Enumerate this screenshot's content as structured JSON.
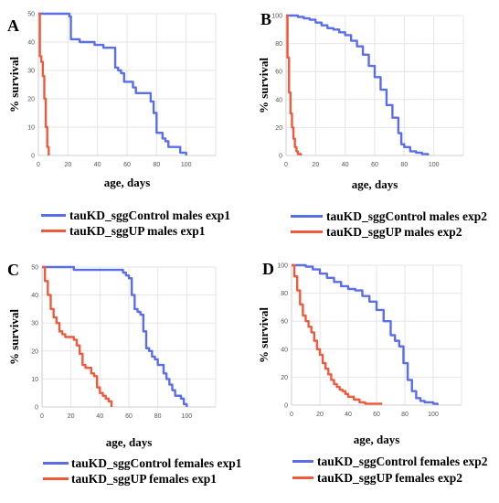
{
  "colors": {
    "control": "#5a6ee8",
    "up": "#ef5a3c"
  },
  "chart_data": [
    {
      "type": "line",
      "panel_label": "A",
      "xlabel": "age, days",
      "ylabel": "% survival",
      "xlim": [
        0,
        120
      ],
      "ylim": [
        0,
        50
      ],
      "xticks": [
        0,
        20,
        40,
        60,
        80,
        100
      ],
      "yticks": [
        0,
        10,
        20,
        30,
        40,
        50
      ],
      "grid": true,
      "legend_placement": "bottom",
      "series": [
        {
          "name": "tauKD_sggControl males exp1",
          "color_key": "control",
          "x": [
            0,
            20,
            21,
            22,
            26,
            28,
            34,
            38,
            42,
            44,
            48,
            52,
            54,
            56,
            58,
            62,
            64,
            66,
            68,
            74,
            76,
            78,
            80,
            82,
            84,
            86,
            88,
            94,
            96,
            98,
            100
          ],
          "y": [
            50,
            50,
            49,
            41,
            41,
            40,
            40,
            39,
            39,
            38,
            38,
            31,
            30,
            29,
            26,
            26,
            24,
            22,
            22,
            22,
            19,
            15,
            8,
            8,
            6,
            5,
            3,
            3,
            1,
            1,
            0
          ]
        },
        {
          "name": "tauKD_sggUP males exp1",
          "color_key": "up",
          "x": [
            0,
            1,
            2,
            3,
            4,
            5,
            6,
            7
          ],
          "y": [
            50,
            35,
            33,
            28,
            20,
            10,
            3,
            0
          ]
        }
      ]
    },
    {
      "type": "line",
      "panel_label": "B",
      "xlabel": "age, days",
      "ylabel": "% survival",
      "xlim": [
        0,
        120
      ],
      "ylim": [
        0,
        100
      ],
      "xticks": [
        0,
        20,
        40,
        60,
        80,
        100
      ],
      "yticks": [
        0,
        20,
        40,
        60,
        80,
        100
      ],
      "grid": true,
      "legend_placement": "bottom",
      "series": [
        {
          "name": "tauKD_sggControl males exp2",
          "color_key": "control",
          "x": [
            0,
            4,
            8,
            12,
            16,
            20,
            24,
            28,
            32,
            36,
            40,
            44,
            48,
            52,
            56,
            60,
            64,
            68,
            72,
            76,
            78,
            80,
            84,
            88,
            92,
            96
          ],
          "y": [
            100,
            100,
            99,
            98,
            97,
            95,
            93,
            91,
            90,
            88,
            86,
            82,
            78,
            72,
            64,
            56,
            47,
            36,
            27,
            16,
            8,
            6,
            3,
            2,
            1,
            0
          ]
        },
        {
          "name": "tauKD_sggUP males exp2",
          "color_key": "up",
          "x": [
            0,
            1,
            2,
            3,
            4,
            5,
            6,
            7,
            8,
            10
          ],
          "y": [
            100,
            70,
            45,
            30,
            20,
            12,
            6,
            3,
            1,
            0
          ]
        }
      ]
    },
    {
      "type": "line",
      "panel_label": "C",
      "xlabel": "age, days",
      "ylabel": "% survival",
      "xlim": [
        0,
        120
      ],
      "ylim": [
        0,
        50
      ],
      "xticks": [
        0,
        20,
        40,
        60,
        80,
        100
      ],
      "yticks": [
        0,
        10,
        20,
        30,
        40,
        50
      ],
      "grid": true,
      "legend_placement": "bottom",
      "series": [
        {
          "name": "tauKD_sggControl females exp1",
          "color_key": "control",
          "x": [
            0,
            20,
            22,
            30,
            40,
            50,
            56,
            58,
            60,
            62,
            64,
            66,
            68,
            70,
            72,
            74,
            76,
            78,
            80,
            82,
            84,
            86,
            88,
            90,
            92,
            94,
            96,
            98,
            100
          ],
          "y": [
            50,
            50,
            49,
            49,
            49,
            49,
            48,
            47,
            46,
            40,
            35,
            34,
            33,
            27,
            21,
            20,
            18,
            17,
            15,
            15,
            12,
            10,
            8,
            6,
            4,
            4,
            3,
            1,
            0
          ]
        },
        {
          "name": "tauKD_sggUP females exp1",
          "color_key": "up",
          "x": [
            0,
            2,
            4,
            6,
            8,
            10,
            12,
            14,
            16,
            18,
            20,
            22,
            24,
            26,
            28,
            30,
            32,
            34,
            36,
            38,
            40,
            42,
            44,
            46,
            48
          ],
          "y": [
            50,
            45,
            40,
            35,
            32,
            30,
            27,
            26,
            25,
            25,
            25,
            24,
            22,
            19,
            15,
            14,
            14,
            12,
            11,
            7,
            5,
            4,
            3,
            2,
            0
          ]
        }
      ]
    },
    {
      "type": "line",
      "panel_label": "D",
      "xlabel": "age, days",
      "ylabel": "% survival",
      "xlim": [
        0,
        120
      ],
      "ylim": [
        0,
        100
      ],
      "xticks": [
        0,
        20,
        40,
        60,
        80,
        100
      ],
      "yticks": [
        0,
        20,
        40,
        60,
        80,
        100
      ],
      "grid": true,
      "legend_placement": "bottom",
      "series": [
        {
          "name": "tauKD_sggControl females exp2",
          "color_key": "control",
          "x": [
            0,
            5,
            10,
            15,
            20,
            25,
            30,
            35,
            40,
            45,
            50,
            55,
            60,
            65,
            70,
            73,
            76,
            79,
            82,
            85,
            88,
            91,
            94,
            97,
            100,
            103
          ],
          "y": [
            100,
            100,
            99,
            97,
            94,
            91,
            88,
            85,
            83,
            82,
            78,
            74,
            68,
            60,
            50,
            46,
            42,
            30,
            18,
            10,
            5,
            3,
            2,
            2,
            1,
            0
          ]
        },
        {
          "name": "tauKD_sggUP females exp2",
          "color_key": "up",
          "x": [
            0,
            2,
            4,
            6,
            8,
            10,
            12,
            14,
            16,
            18,
            20,
            22,
            24,
            26,
            28,
            30,
            32,
            34,
            36,
            38,
            40,
            44,
            48,
            52,
            56,
            60,
            64
          ],
          "y": [
            100,
            92,
            82,
            72,
            64,
            60,
            56,
            52,
            46,
            40,
            36,
            30,
            26,
            22,
            18,
            15,
            13,
            11,
            10,
            8,
            6,
            4,
            2,
            1,
            1,
            1,
            1
          ]
        }
      ]
    }
  ]
}
